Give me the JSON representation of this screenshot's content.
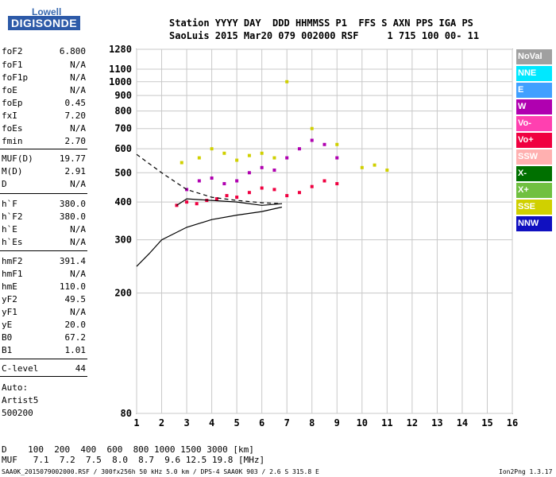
{
  "logo": {
    "brand": "Lowell",
    "product": "DIGISONDE"
  },
  "header": {
    "line1": "Station YYYY DAY  DDD HHMMSS P1  FFS S AXN PPS IGA PS",
    "line2": "SaoLuis 2015 Mar20 079 002000 RSF     1 715 100 00- 11"
  },
  "params": [
    {
      "name": "foF2",
      "value": "6.800"
    },
    {
      "name": "foF1",
      "value": "N/A"
    },
    {
      "name": "foF1p",
      "value": "N/A"
    },
    {
      "name": "foE",
      "value": "N/A"
    },
    {
      "name": "foEp",
      "value": "0.45"
    },
    {
      "name": "fxI",
      "value": "7.20"
    },
    {
      "name": "foEs",
      "value": "N/A"
    },
    {
      "name": "fmin",
      "value": "2.70"
    },
    {
      "name": "MUF(D)",
      "value": "19.77"
    },
    {
      "name": "M(D)",
      "value": "2.91"
    },
    {
      "name": "D",
      "value": "N/A"
    },
    {
      "name": "h`F",
      "value": "380.0"
    },
    {
      "name": "h`F2",
      "value": "380.0"
    },
    {
      "name": "h`E",
      "value": "N/A"
    },
    {
      "name": "h`Es",
      "value": "N/A"
    },
    {
      "name": "hmF2",
      "value": "391.4"
    },
    {
      "name": "hmF1",
      "value": "N/A"
    },
    {
      "name": "hmE",
      "value": "110.0"
    },
    {
      "name": "yF2",
      "value": "49.5"
    },
    {
      "name": "yF1",
      "value": "N/A"
    },
    {
      "name": "yE",
      "value": "20.0"
    },
    {
      "name": "B0",
      "value": "67.2"
    },
    {
      "name": "B1",
      "value": "1.01"
    },
    {
      "name": "C-level",
      "value": "44"
    }
  ],
  "autoscaling": {
    "line1": "Auto:",
    "line2": "Artist5",
    "line3": "500200"
  },
  "legend": [
    {
      "label": "NoVal",
      "color": "#a0a0a0"
    },
    {
      "label": "NNE",
      "color": "#00e8ff"
    },
    {
      "label": "E",
      "color": "#40a0ff"
    },
    {
      "label": "W",
      "color": "#b000b0"
    },
    {
      "label": "Vo-",
      "color": "#ff40b0"
    },
    {
      "label": "Vo+",
      "color": "#f00040"
    },
    {
      "label": "SSW",
      "color": "#ffb0b0"
    },
    {
      "label": "X-",
      "color": "#007000"
    },
    {
      "label": "X+",
      "color": "#70c040"
    },
    {
      "label": "SSE",
      "color": "#d0d000"
    },
    {
      "label": "NNW",
      "color": "#1010c0"
    }
  ],
  "footer": {
    "d_line": "D    100  200  400  600  800 1000 1500 3000 [km]",
    "muf_line": "MUF   7.1  7.2  7.5  8.0  8.7  9.6 12.5 19.8 [MHz]",
    "file_line": "SAA0K_2015079002000.RSF / 300fx256h 50 kHz 5.0 km / DPS-4 SAA0K 903 / 2.6 S 315.8 E",
    "version": "Ion2Png 1.3.17"
  },
  "chart_data": {
    "type": "scatter",
    "title": "",
    "xlabel": "",
    "ylabel": "",
    "x_unit": "MHz",
    "y_unit": "km",
    "xlim": [
      1,
      16
    ],
    "ylim": [
      80,
      1280
    ],
    "y_scale": "log",
    "x_ticks": [
      1,
      2,
      3,
      4,
      5,
      6,
      7,
      8,
      9,
      10,
      11,
      12,
      13,
      14,
      15,
      16
    ],
    "y_ticks": [
      80,
      200,
      300,
      400,
      500,
      600,
      700,
      800,
      900,
      1000,
      1100,
      1280
    ],
    "grid": true,
    "series": [
      {
        "name": "Vo+",
        "color": "#f00040",
        "values": [
          [
            2.6,
            390
          ],
          [
            3.0,
            400
          ],
          [
            3.4,
            395
          ],
          [
            3.8,
            405
          ],
          [
            4.2,
            410
          ],
          [
            4.6,
            420
          ],
          [
            5.0,
            415
          ],
          [
            5.5,
            430
          ],
          [
            6.0,
            445
          ],
          [
            6.5,
            440
          ],
          [
            7.0,
            420
          ],
          [
            7.5,
            430
          ],
          [
            8.0,
            450
          ],
          [
            8.5,
            470
          ],
          [
            9.0,
            460
          ]
        ]
      },
      {
        "name": "W",
        "color": "#b000b0",
        "values": [
          [
            3.0,
            440
          ],
          [
            3.5,
            470
          ],
          [
            4.0,
            480
          ],
          [
            4.5,
            460
          ],
          [
            5.0,
            470
          ],
          [
            5.5,
            500
          ],
          [
            6.0,
            520
          ],
          [
            6.5,
            510
          ],
          [
            7.0,
            560
          ],
          [
            7.5,
            600
          ],
          [
            8.0,
            640
          ],
          [
            8.5,
            620
          ],
          [
            9.0,
            560
          ]
        ]
      },
      {
        "name": "SSE",
        "color": "#d0d000",
        "values": [
          [
            2.8,
            540
          ],
          [
            3.5,
            560
          ],
          [
            4.0,
            600
          ],
          [
            4.5,
            580
          ],
          [
            5.0,
            550
          ],
          [
            5.5,
            570
          ],
          [
            6.0,
            580
          ],
          [
            6.5,
            560
          ],
          [
            7.0,
            1000
          ],
          [
            8.0,
            700
          ],
          [
            9.0,
            620
          ],
          [
            10.0,
            520
          ],
          [
            10.5,
            530
          ],
          [
            11.0,
            510
          ]
        ]
      }
    ],
    "curves": [
      {
        "style": "solid",
        "points": [
          [
            1.0,
            245
          ],
          [
            1.5,
            270
          ],
          [
            2.0,
            300
          ],
          [
            3.0,
            330
          ],
          [
            4.0,
            350
          ],
          [
            5.0,
            362
          ],
          [
            6.0,
            372
          ],
          [
            6.8,
            385
          ]
        ]
      },
      {
        "style": "dashed",
        "points": [
          [
            1.0,
            575
          ],
          [
            2.0,
            500
          ],
          [
            3.0,
            440
          ],
          [
            4.0,
            415
          ],
          [
            5.0,
            405
          ],
          [
            6.0,
            398
          ],
          [
            6.8,
            395
          ]
        ]
      },
      {
        "style": "solid",
        "points": [
          [
            2.6,
            390
          ],
          [
            3.0,
            410
          ],
          [
            4.0,
            405
          ],
          [
            5.0,
            400
          ],
          [
            6.0,
            390
          ],
          [
            6.8,
            395
          ]
        ]
      }
    ]
  }
}
